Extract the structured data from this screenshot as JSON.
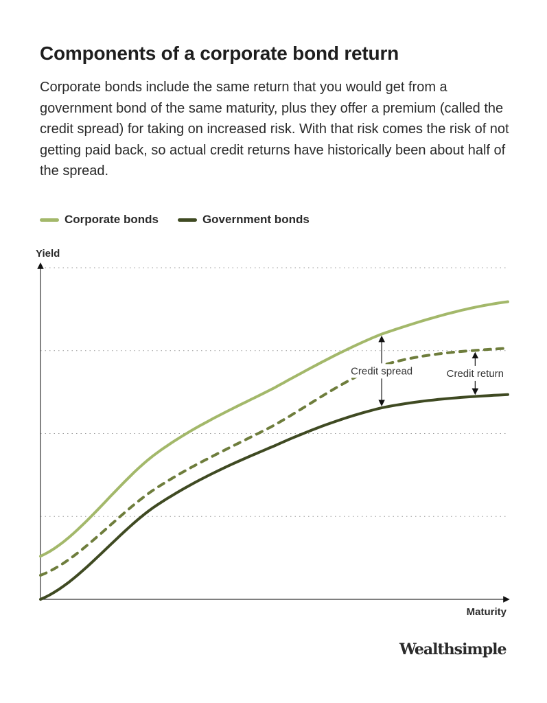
{
  "title": "Components of a corporate bond return",
  "description": "Corporate bonds include the same return that you would get from a government bond of the same maturity, plus they offer a premium (called the credit spread) for taking on increased risk. With that risk comes the risk of not getting paid back, so actual credit returns have historically been about half of the spread.",
  "brand": "Wealthsimple",
  "chart_data": {
    "type": "line",
    "xlabel": "Maturity",
    "ylabel": "Yield",
    "xlim": [
      0,
      1
    ],
    "ylim": [
      0,
      4
    ],
    "grid": "horizontal dotted",
    "legend_placement": "top-left",
    "x": [
      0,
      0.25,
      0.5,
      0.73,
      1
    ],
    "series": [
      {
        "name": "Corporate bonds",
        "color": "#a3b86a",
        "style": "solid",
        "values": [
          0.52,
          1.77,
          2.55,
          3.2,
          3.59
        ]
      },
      {
        "name": "Government bonds",
        "color": "#3f4a22",
        "style": "solid",
        "values": [
          0,
          1.14,
          1.85,
          2.31,
          2.47
        ]
      },
      {
        "color": "#6e7d3c",
        "style": "dashed",
        "values": [
          0.29,
          1.35,
          2.1,
          2.82,
          3.03
        ]
      }
    ],
    "annotations": [
      {
        "text": "Credit spread",
        "x": 0.73,
        "from_series": 0,
        "to_series": 1
      },
      {
        "text": "Credit return",
        "x": 0.93,
        "from_series": 2,
        "to_series": 1
      }
    ]
  }
}
